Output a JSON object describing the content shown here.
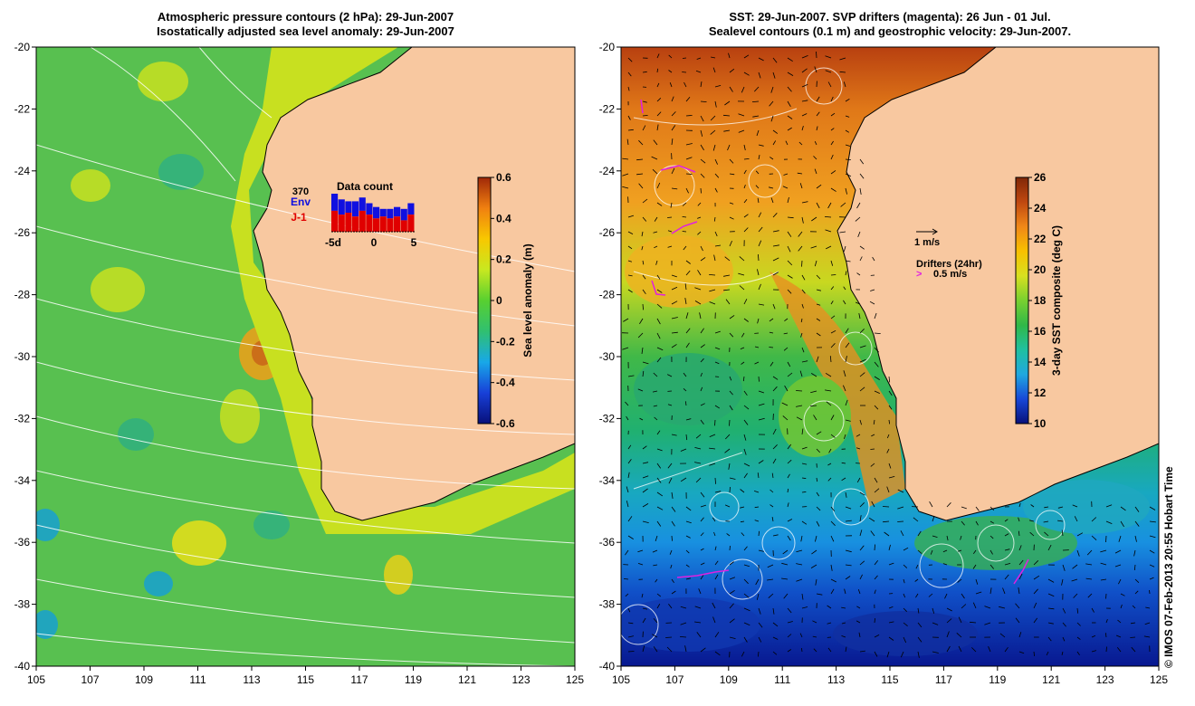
{
  "left_map": {
    "title_line1": "Atmospheric pressure contours (2 hPa): 29-Jun-2007",
    "title_line2": "Isostatically adjusted sea level anomaly: 29-Jun-2007",
    "colorbar": {
      "label": "Sea level anomaly (m)",
      "min": -0.6,
      "max": 0.6,
      "ticks": [
        "0.6",
        "0.4",
        "0.2",
        "0",
        "-0.2",
        "-0.4",
        "-0.6"
      ],
      "colors": [
        "#08107a",
        "#1840d8",
        "#18a8e8",
        "#30c070",
        "#58d030",
        "#c8e820",
        "#f8c800",
        "#f08010",
        "#a02808"
      ]
    },
    "inset": {
      "title": "Data count",
      "count": "370",
      "series": [
        {
          "name": "Env",
          "color": "#1010e0"
        },
        {
          "name": "J-1",
          "color": "#e00000"
        }
      ],
      "x_ticks": [
        "-5d",
        "0",
        "5"
      ],
      "bars": [
        {
          "env": 1.0,
          "j1": 0.55
        },
        {
          "env": 0.85,
          "j1": 0.45
        },
        {
          "env": 0.8,
          "j1": 0.5
        },
        {
          "env": 0.8,
          "j1": 0.4
        },
        {
          "env": 0.9,
          "j1": 0.55
        },
        {
          "env": 0.75,
          "j1": 0.45
        },
        {
          "env": 0.65,
          "j1": 0.35
        },
        {
          "env": 0.6,
          "j1": 0.4
        },
        {
          "env": 0.6,
          "j1": 0.35
        },
        {
          "env": 0.65,
          "j1": 0.4
        },
        {
          "env": 0.6,
          "j1": 0.3
        },
        {
          "env": 0.75,
          "j1": 0.45
        }
      ]
    }
  },
  "right_map": {
    "title_line1": "SST: 29-Jun-2007. SVP drifters (magenta): 26 Jun - 01 Jul.",
    "title_line2": "Sealevel contours (0.1 m) and geostrophic velocity: 29-Jun-2007.",
    "colorbar": {
      "label": "3-day SST composite (deg C)",
      "min": 10,
      "max": 26,
      "ticks": [
        "26",
        "24",
        "22",
        "20",
        "18",
        "16",
        "14",
        "12",
        "10"
      ],
      "colors": [
        "#08107a",
        "#1848d8",
        "#20a8e0",
        "#20c0a0",
        "#30b848",
        "#78d030",
        "#d8e020",
        "#f8c000",
        "#f08818",
        "#c04810",
        "#802808"
      ]
    },
    "velocity_scale": "1 m/s",
    "drifters_label": "Drifters (24hr)",
    "drifters_scale": "0.5 m/s"
  },
  "x_ticks": [
    "105",
    "107",
    "109",
    "111",
    "113",
    "115",
    "117",
    "119",
    "121",
    "123",
    "125"
  ],
  "y_ticks": [
    "-20",
    "-22",
    "-24",
    "-26",
    "-28",
    "-30",
    "-32",
    "-34",
    "-36",
    "-38",
    "-40"
  ],
  "credit": "© IMOS 07-Feb-2013 20:55 Hobart Time",
  "colors": {
    "land": "#f8c8a0",
    "ocean_left": "#58c050",
    "coast": "#000000",
    "contour": "#ffffff"
  }
}
